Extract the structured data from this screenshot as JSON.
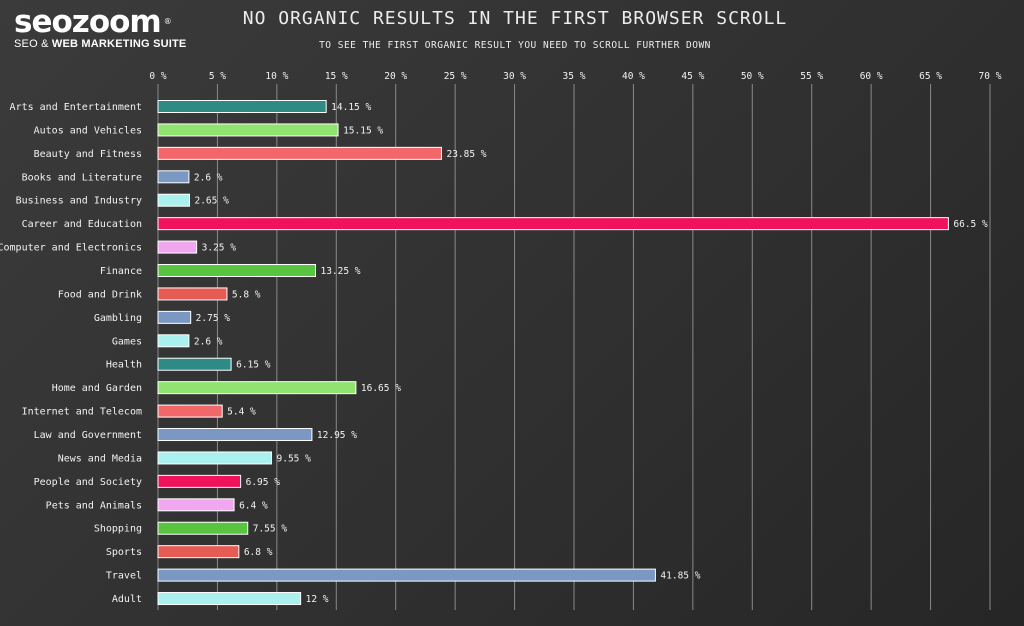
{
  "brand": {
    "name": "seozoom",
    "registered_mark": "®",
    "tagline_prefix": "SEO & ",
    "tagline_bold": "WEB MARKETING SUITE"
  },
  "chart_data": {
    "type": "bar",
    "orientation": "horizontal",
    "title": "NO ORGANIC RESULTS IN THE FIRST BROWSER SCROLL",
    "subtitle": "TO SEE THE FIRST ORGANIC RESULT YOU NEED TO SCROLL FURTHER DOWN",
    "xlim": [
      0,
      70
    ],
    "x_ticks": [
      0,
      5,
      10,
      15,
      20,
      25,
      30,
      35,
      40,
      45,
      50,
      55,
      60,
      65,
      70
    ],
    "tick_labels": [
      "0 %",
      "5 %",
      "10 %",
      "15 %",
      "20 %",
      "25 %",
      "30 %",
      "35 %",
      "40 %",
      "45 %",
      "50 %",
      "55 %",
      "60 %",
      "65 %",
      "70 %"
    ],
    "axis_position": "top",
    "grid": true,
    "categories": [
      "Arts and Entertainment",
      "Autos and Vehicles",
      "Beauty and Fitness",
      "Books and Literature",
      "Business and Industry",
      "Career and Education",
      "Computer and Electronics",
      "Finance",
      "Food and Drink",
      "Gambling",
      "Games",
      "Health",
      "Home and Garden",
      "Internet and Telecom",
      "Law and Government",
      "News and Media",
      "People and Society",
      "Pets and Animals",
      "Shopping",
      "Sports",
      "Travel",
      "Adult"
    ],
    "values": [
      14.15,
      15.15,
      23.85,
      2.6,
      2.65,
      66.5,
      3.25,
      13.25,
      5.8,
      2.75,
      2.6,
      6.15,
      16.65,
      5.4,
      12.95,
      9.55,
      6.95,
      6.4,
      7.55,
      6.8,
      41.85,
      12
    ],
    "value_labels": [
      "14.15 %",
      "15.15 %",
      "23.85 %",
      "2.6 %",
      "2.65 %",
      "66.5 %",
      "3.25 %",
      "13.25 %",
      "5.8 %",
      "2.75 %",
      "2.6 %",
      "6.15 %",
      "16.65 %",
      "5.4 %",
      "12.95 %",
      "9.55 %",
      "6.95 %",
      "6.4 %",
      "7.55 %",
      "6.8 %",
      "41.85 %",
      "12 %"
    ],
    "colors": [
      "#2e8a84",
      "#8fe36e",
      "#f2676a",
      "#7a98c2",
      "#a9f0ef",
      "#f0125a",
      "#f1a6f0",
      "#58c541",
      "#e75b55",
      "#7a98c2",
      "#a9f0ef",
      "#2e8a84",
      "#8fe36e",
      "#f2676a",
      "#7a98c2",
      "#a9f0ef",
      "#f0125a",
      "#f1a6f0",
      "#58c541",
      "#e75b55",
      "#7a98c2",
      "#a9f0ef"
    ],
    "bar_border_color": "#ffffff",
    "grid_color": "#8a8a8a"
  }
}
